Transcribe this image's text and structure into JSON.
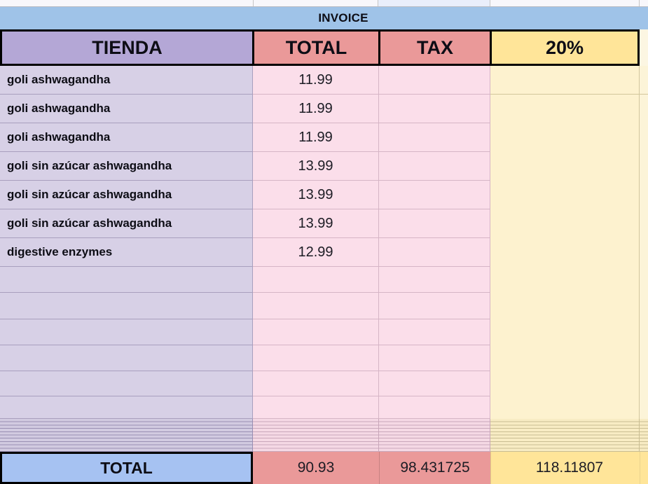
{
  "title": "INVOICE",
  "columns": {
    "tienda": "TIENDA",
    "total": "TOTAL",
    "tax": "TAX",
    "pct": "20%"
  },
  "items": [
    {
      "name": "goli ashwagandha",
      "total": "11.99"
    },
    {
      "name": "goli ashwagandha",
      "total": "11.99"
    },
    {
      "name": "goli ashwagandha",
      "total": "11.99"
    },
    {
      "name": "goli sin azúcar ashwagandha",
      "total": "13.99"
    },
    {
      "name": "goli sin azúcar ashwagandha",
      "total": "13.99"
    },
    {
      "name": "goli sin azúcar ashwagandha",
      "total": "13.99"
    },
    {
      "name": "digestive enzymes",
      "total": "12.99"
    }
  ],
  "empty_row_count": 6,
  "footer": {
    "label": "TOTAL",
    "total": "90.93",
    "tax": "98.431725",
    "pct": "118.11807"
  },
  "colors": {
    "banner_blue": "#9fc3e8",
    "header_purple": "#b4a7d6",
    "header_red": "#ea9999",
    "header_yellow": "#ffe599",
    "cell_lavender": "#d7d0e6",
    "cell_pink": "#fbdeea",
    "cell_pale_yellow": "#fdf2cf",
    "footer_blue": "#a6c2f2",
    "border_black": "#000000"
  }
}
